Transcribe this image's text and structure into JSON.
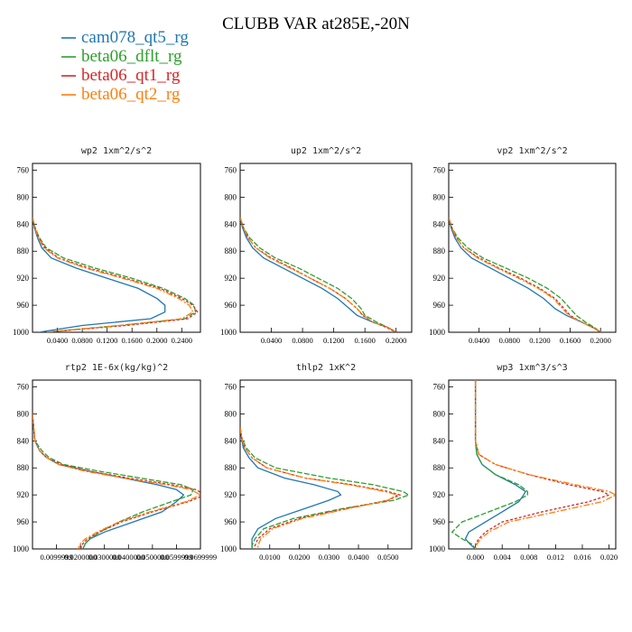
{
  "figure": {
    "title": "CLUBB VAR at285E,-20N",
    "legend": [
      {
        "name": "cam078_qt5_rg",
        "color": "#1f77b4"
      },
      {
        "name": "beta06_dflt_rg",
        "color": "#2ca02c"
      },
      {
        "name": "beta06_qt1_rg",
        "color": "#d62728"
      },
      {
        "name": "beta06_qt2_rg",
        "color": "#ff7f0e"
      }
    ]
  },
  "chart_data": [
    {
      "type": "line",
      "title": "wp2   1xm^2/s^2",
      "xlim": [
        0,
        0.27
      ],
      "ylim": [
        1000,
        750
      ],
      "x_ticks": [
        "0.0400",
        "0.0800",
        "0.1200",
        "0.1600",
        "0.2000",
        "0.2400"
      ],
      "x_tick_values": [
        0.04,
        0.08,
        0.12,
        0.16,
        0.2,
        0.24
      ],
      "y_ticks": [
        760,
        800,
        840,
        880,
        920,
        960,
        1000
      ],
      "y": [
        830,
        845,
        860,
        875,
        890,
        905,
        920,
        935,
        950,
        960,
        970,
        980,
        990,
        1000
      ],
      "series": [
        {
          "name": "cam078_qt5_rg",
          "values": [
            0,
            0.003,
            0.008,
            0.015,
            0.03,
            0.07,
            0.12,
            0.17,
            0.2,
            0.213,
            0.213,
            0.19,
            0.08,
            0.01
          ]
        },
        {
          "name": "beta06_dflt_rg",
          "values": [
            0,
            0.004,
            0.011,
            0.022,
            0.05,
            0.1,
            0.16,
            0.21,
            0.245,
            0.26,
            0.262,
            0.245,
            0.14,
            0.02
          ]
        },
        {
          "name": "beta06_qt1_rg",
          "values": [
            0,
            0.004,
            0.01,
            0.02,
            0.042,
            0.09,
            0.15,
            0.205,
            0.24,
            0.258,
            0.265,
            0.25,
            0.15,
            0.02
          ]
        },
        {
          "name": "beta06_qt2_rg",
          "values": [
            0,
            0.004,
            0.009,
            0.018,
            0.04,
            0.085,
            0.145,
            0.2,
            0.235,
            0.252,
            0.258,
            0.24,
            0.14,
            0.02
          ]
        }
      ]
    },
    {
      "type": "line",
      "title": "up2   1xm^2/s^2",
      "xlim": [
        0,
        0.22
      ],
      "ylim": [
        1000,
        750
      ],
      "x_ticks": [
        "0.0400",
        "0.0800",
        "0.1200",
        "0.1600",
        "0.2000"
      ],
      "x_tick_values": [
        0.04,
        0.08,
        0.12,
        0.16,
        0.2
      ],
      "y_ticks": [
        760,
        800,
        840,
        880,
        920,
        960,
        1000
      ],
      "y": [
        830,
        845,
        860,
        875,
        890,
        905,
        920,
        935,
        950,
        965,
        975,
        985,
        993,
        1000
      ],
      "series": [
        {
          "name": "cam078_qt5_rg",
          "values": [
            0,
            0.003,
            0.008,
            0.016,
            0.03,
            0.055,
            0.08,
            0.105,
            0.125,
            0.14,
            0.15,
            0.17,
            0.19,
            0.2
          ]
        },
        {
          "name": "beta06_dflt_rg",
          "values": [
            0,
            0.004,
            0.012,
            0.025,
            0.045,
            0.075,
            0.1,
            0.125,
            0.143,
            0.155,
            0.16,
            0.175,
            0.19,
            0.2
          ]
        },
        {
          "name": "beta06_qt1_rg",
          "values": [
            0,
            0.004,
            0.01,
            0.02,
            0.04,
            0.066,
            0.09,
            0.115,
            0.135,
            0.15,
            0.157,
            0.17,
            0.188,
            0.2
          ]
        },
        {
          "name": "beta06_qt2_rg",
          "values": [
            0,
            0.004,
            0.01,
            0.02,
            0.038,
            0.064,
            0.09,
            0.115,
            0.135,
            0.15,
            0.158,
            0.17,
            0.19,
            0.2
          ]
        }
      ]
    },
    {
      "type": "line",
      "title": "vp2   1xm^2/s^2",
      "xlim": [
        0,
        0.22
      ],
      "ylim": [
        1000,
        750
      ],
      "x_ticks": [
        "0.0400",
        "0.0800",
        "0.1200",
        "0.1600",
        "0.2000"
      ],
      "x_tick_values": [
        0.04,
        0.08,
        0.12,
        0.16,
        0.2
      ],
      "y_ticks": [
        760,
        800,
        840,
        880,
        920,
        960,
        1000
      ],
      "y": [
        830,
        845,
        860,
        875,
        890,
        905,
        920,
        935,
        950,
        965,
        975,
        985,
        993,
        1000
      ],
      "series": [
        {
          "name": "cam078_qt5_rg",
          "values": [
            0,
            0.003,
            0.008,
            0.016,
            0.03,
            0.055,
            0.08,
            0.105,
            0.125,
            0.14,
            0.155,
            0.175,
            0.19,
            0.2
          ]
        },
        {
          "name": "beta06_dflt_rg",
          "values": [
            0,
            0.004,
            0.012,
            0.025,
            0.045,
            0.075,
            0.105,
            0.13,
            0.148,
            0.16,
            0.168,
            0.18,
            0.192,
            0.2
          ]
        },
        {
          "name": "beta06_qt1_rg",
          "values": [
            0,
            0.004,
            0.01,
            0.02,
            0.04,
            0.066,
            0.095,
            0.12,
            0.14,
            0.152,
            0.16,
            0.175,
            0.19,
            0.2
          ]
        },
        {
          "name": "beta06_qt2_rg",
          "values": [
            0,
            0.004,
            0.01,
            0.02,
            0.038,
            0.064,
            0.092,
            0.118,
            0.138,
            0.15,
            0.158,
            0.175,
            0.19,
            0.2
          ]
        }
      ]
    },
    {
      "type": "line",
      "title": "rtp2   1E-6x(kg/kg)^2",
      "xlim": [
        0,
        0.07
      ],
      "ylim": [
        1000,
        750
      ],
      "x_ticks": [
        "0.0099999",
        "0.0200000",
        "0.0300000",
        "0.0400000",
        "0.0500000",
        "0.0599999",
        "0.0699999"
      ],
      "x_tick_values": [
        0.01,
        0.02,
        0.03,
        0.04,
        0.05,
        0.06,
        0.07
      ],
      "y_ticks": [
        760,
        800,
        840,
        880,
        920,
        960,
        1000
      ],
      "y": [
        800,
        820,
        840,
        855,
        865,
        875,
        885,
        895,
        905,
        912,
        920,
        930,
        945,
        960,
        975,
        985,
        992,
        1000
      ],
      "series": [
        {
          "name": "cam078_qt5_rg",
          "values": [
            0.0,
            0.0005,
            0.001,
            0.003,
            0.006,
            0.011,
            0.024,
            0.038,
            0.052,
            0.06,
            0.063,
            0.06,
            0.054,
            0.042,
            0.03,
            0.024,
            0.022,
            0.021
          ]
        },
        {
          "name": "beta06_dflt_rg",
          "values": [
            0.0,
            0.0005,
            0.001,
            0.004,
            0.007,
            0.013,
            0.028,
            0.045,
            0.062,
            0.067,
            0.066,
            0.058,
            0.046,
            0.036,
            0.028,
            0.024,
            0.022,
            0.021
          ]
        },
        {
          "name": "beta06_qt1_rg",
          "values": [
            0.0,
            0.0005,
            0.001,
            0.003,
            0.006,
            0.012,
            0.024,
            0.04,
            0.058,
            0.068,
            0.072,
            0.065,
            0.05,
            0.037,
            0.028,
            0.023,
            0.021,
            0.02
          ]
        },
        {
          "name": "beta06_qt2_rg",
          "values": [
            0.0,
            0.0005,
            0.001,
            0.003,
            0.006,
            0.011,
            0.022,
            0.038,
            0.056,
            0.066,
            0.07,
            0.064,
            0.049,
            0.036,
            0.027,
            0.022,
            0.02,
            0.019
          ]
        }
      ]
    },
    {
      "type": "line",
      "title": "thlp2   1xK^2",
      "xlim": [
        0,
        0.058
      ],
      "ylim": [
        1000,
        750
      ],
      "x_ticks": [
        "0.0100",
        "0.0200",
        "0.0300",
        "0.0400",
        "0.0500"
      ],
      "x_tick_values": [
        0.01,
        0.02,
        0.03,
        0.04,
        0.05
      ],
      "y_ticks": [
        760,
        800,
        840,
        880,
        920,
        960,
        1000
      ],
      "y": [
        820,
        835,
        850,
        865,
        880,
        895,
        905,
        915,
        920,
        928,
        940,
        955,
        970,
        985,
        995,
        1000
      ],
      "series": [
        {
          "name": "cam078_qt5_rg",
          "values": [
            0.0,
            0.0005,
            0.001,
            0.003,
            0.006,
            0.015,
            0.025,
            0.033,
            0.034,
            0.03,
            0.022,
            0.012,
            0.006,
            0.004,
            0.004,
            0.004
          ]
        },
        {
          "name": "beta06_dflt_rg",
          "values": [
            0.0,
            0.0005,
            0.002,
            0.005,
            0.012,
            0.03,
            0.045,
            0.055,
            0.057,
            0.052,
            0.035,
            0.018,
            0.008,
            0.005,
            0.004,
            0.004
          ]
        },
        {
          "name": "beta06_qt1_rg",
          "values": [
            0.0,
            0.0005,
            0.0015,
            0.004,
            0.009,
            0.022,
            0.038,
            0.05,
            0.054,
            0.05,
            0.036,
            0.02,
            0.01,
            0.006,
            0.005,
            0.005
          ]
        },
        {
          "name": "beta06_qt2_rg",
          "values": [
            0.0,
            0.0005,
            0.0015,
            0.004,
            0.009,
            0.022,
            0.037,
            0.049,
            0.053,
            0.05,
            0.037,
            0.021,
            0.011,
            0.007,
            0.006,
            0.006
          ]
        }
      ]
    },
    {
      "type": "line",
      "title": "wp3   1xm^3/s^3",
      "xlim": [
        -0.004,
        0.021
      ],
      "ylim": [
        1000,
        750
      ],
      "x_ticks": [
        "0.000",
        "0.004",
        "0.008",
        "0.012",
        "0.016",
        "0.020"
      ],
      "x_tick_values": [
        0.0,
        0.004,
        0.008,
        0.012,
        0.016,
        0.02
      ],
      "y_ticks": [
        760,
        800,
        840,
        880,
        920,
        960,
        1000
      ],
      "y": [
        750,
        800,
        840,
        860,
        875,
        890,
        905,
        915,
        920,
        930,
        945,
        960,
        975,
        985,
        993,
        1000
      ],
      "series": [
        {
          "name": "cam078_qt5_rg",
          "values": [
            0.0,
            0.0,
            0.0,
            0.0002,
            0.001,
            0.003,
            0.006,
            0.0075,
            0.0072,
            0.0065,
            0.004,
            0.0015,
            -0.001,
            -0.0015,
            -0.0008,
            0.0
          ]
        },
        {
          "name": "beta06_dflt_rg",
          "values": [
            0.0,
            0.0,
            0.0,
            0.0002,
            0.001,
            0.003,
            0.0065,
            0.0078,
            0.0078,
            0.006,
            0.002,
            -0.002,
            -0.0035,
            -0.002,
            -0.0005,
            0.0
          ]
        },
        {
          "name": "beta06_qt1_rg",
          "values": [
            0.0,
            0.0,
            0.0,
            0.0005,
            0.003,
            0.008,
            0.014,
            0.019,
            0.02,
            0.017,
            0.01,
            0.004,
            0.0015,
            0.0005,
            0.0,
            0.0
          ]
        },
        {
          "name": "beta06_qt2_rg",
          "values": [
            0.0,
            0.0,
            0.0,
            0.0005,
            0.003,
            0.008,
            0.015,
            0.02,
            0.021,
            0.019,
            0.012,
            0.005,
            0.002,
            0.0008,
            0.0002,
            0.0
          ]
        }
      ]
    }
  ]
}
